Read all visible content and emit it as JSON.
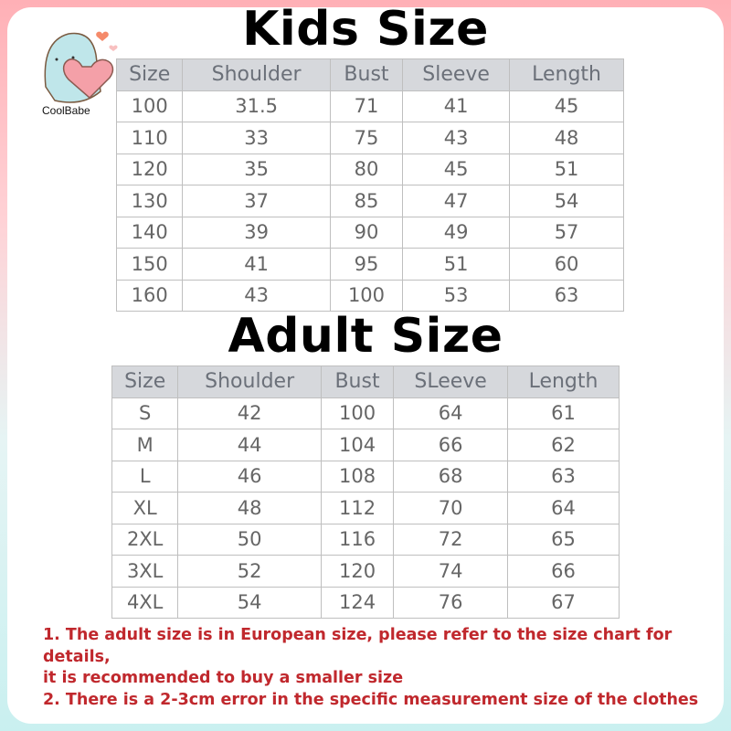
{
  "logo": {
    "text": "CoolBabe",
    "icon": "mascot-holding-heart-icon"
  },
  "kids": {
    "title": "Kids Size",
    "headers": [
      "Size",
      "Shoulder",
      "Bust",
      "Sleeve",
      "Length"
    ],
    "rows": [
      [
        "100",
        "31.5",
        "71",
        "41",
        "45"
      ],
      [
        "110",
        "33",
        "75",
        "43",
        "48"
      ],
      [
        "120",
        "35",
        "80",
        "45",
        "51"
      ],
      [
        "130",
        "37",
        "85",
        "47",
        "54"
      ],
      [
        "140",
        "39",
        "90",
        "49",
        "57"
      ],
      [
        "150",
        "41",
        "95",
        "51",
        "60"
      ],
      [
        "160",
        "43",
        "100",
        "53",
        "63"
      ]
    ]
  },
  "adult": {
    "title": "Adult Size",
    "headers": [
      "Size",
      "Shoulder",
      "Bust",
      "SLeeve",
      "Length"
    ],
    "rows": [
      [
        "S",
        "42",
        "100",
        "64",
        "61"
      ],
      [
        "M",
        "44",
        "104",
        "66",
        "62"
      ],
      [
        "L",
        "46",
        "108",
        "68",
        "63"
      ],
      [
        "XL",
        "48",
        "112",
        "70",
        "64"
      ],
      [
        "2XL",
        "50",
        "116",
        "72",
        "65"
      ],
      [
        "3XL",
        "52",
        "120",
        "74",
        "66"
      ],
      [
        "4XL",
        "54",
        "124",
        "76",
        "67"
      ]
    ]
  },
  "notes": {
    "line1": "1. The adult size is in European size, please refer to the size chart for details,",
    "line2": "it is recommended to buy a smaller size",
    "line3": "2. There is a 2-3cm error in the specific measurement size of the clothes"
  },
  "colors": {
    "header_bg": "#d6d8dc",
    "note_red": "#c0282d"
  }
}
